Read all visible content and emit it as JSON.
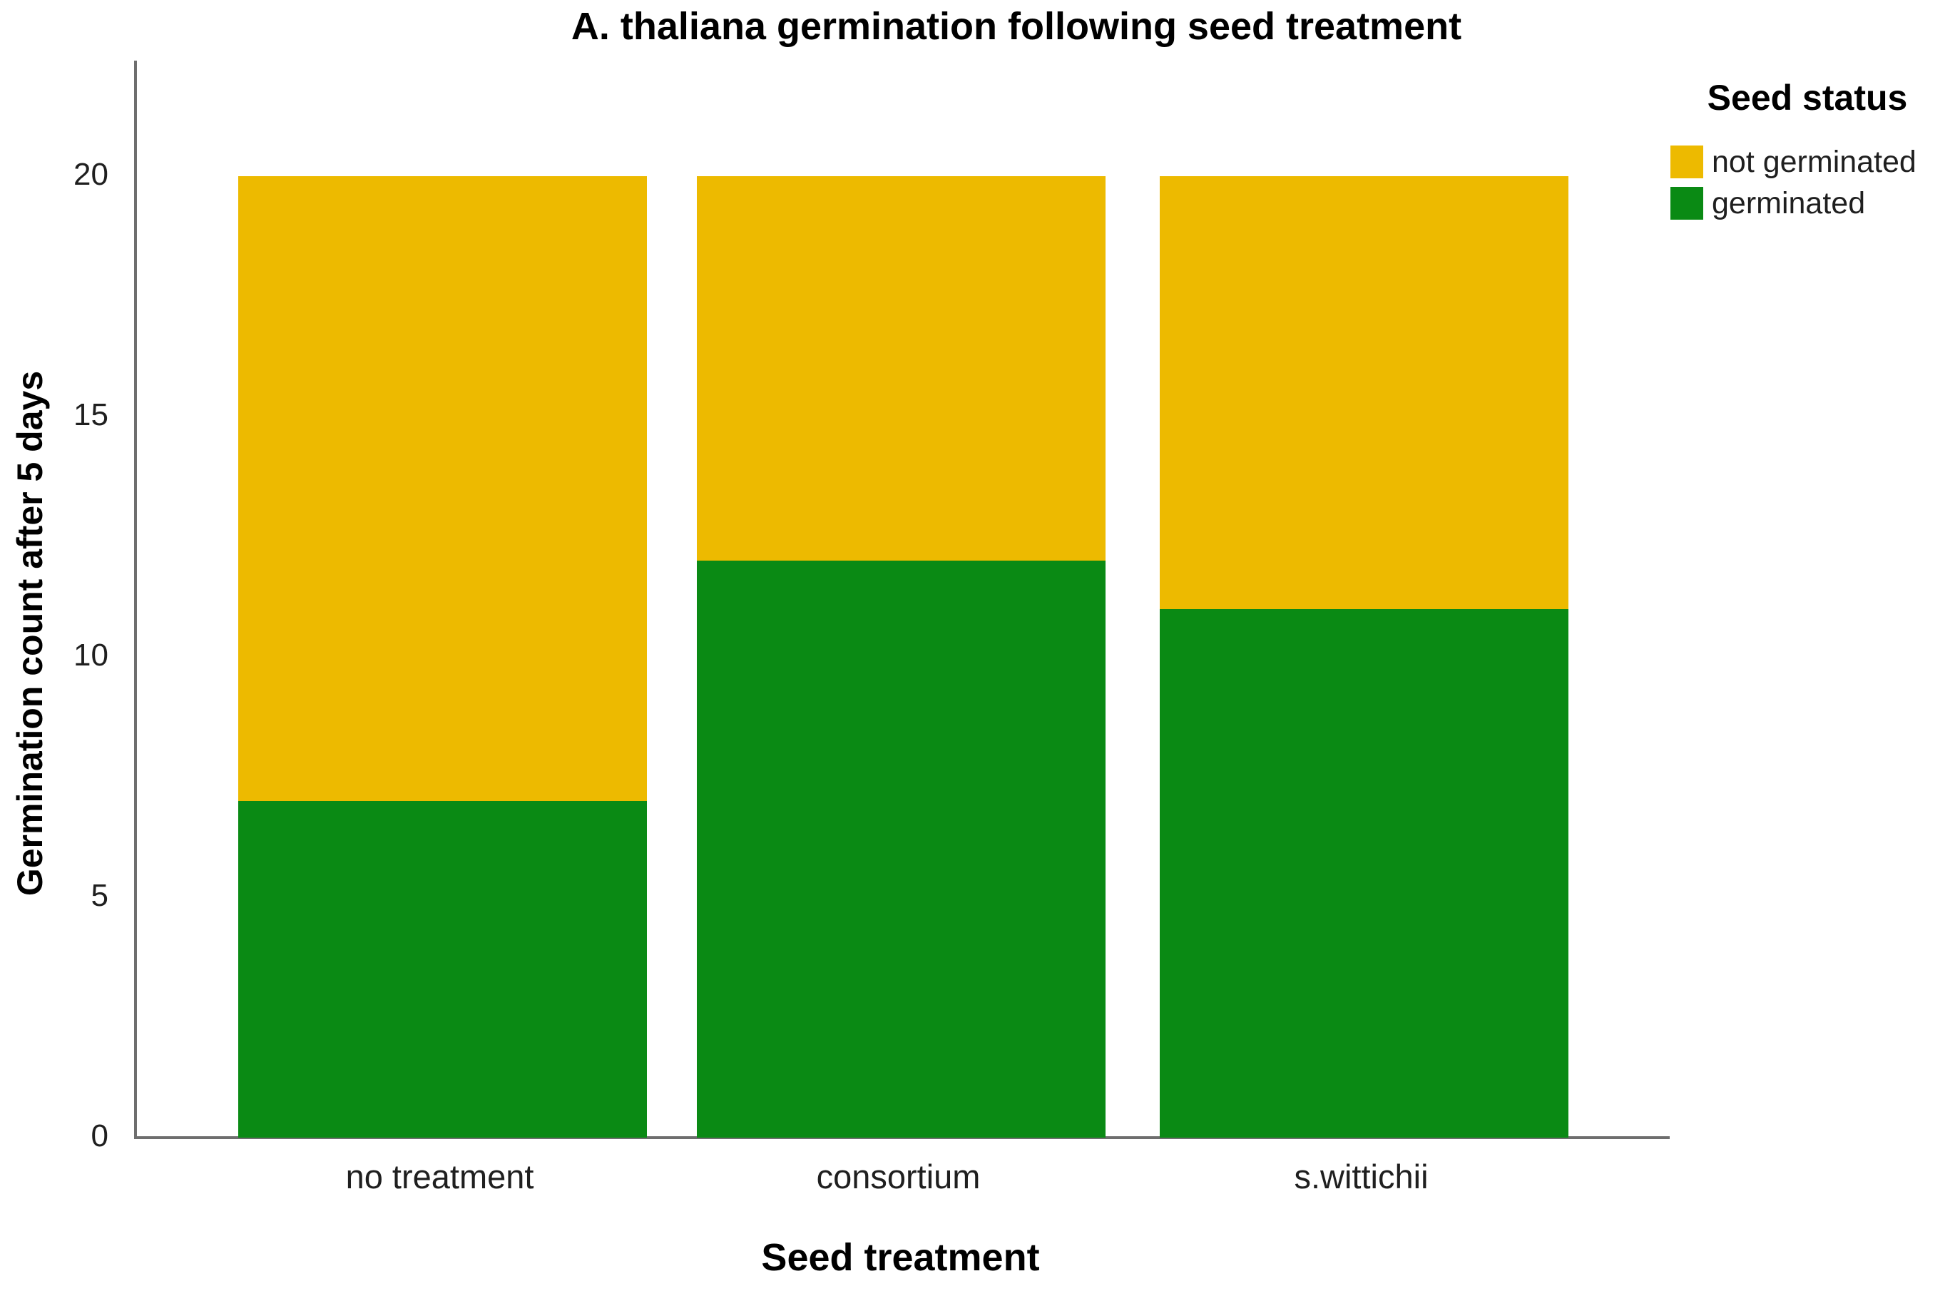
{
  "title": "A. thaliana germination following seed treatment",
  "y_axis_title": "Germination count after 5 days",
  "x_axis_title": "Seed treatment",
  "legend": {
    "title": "Seed status",
    "items": [
      {
        "label": "not germinated",
        "color": "#edba00"
      },
      {
        "label": "germinated",
        "color": "#0a8a14"
      }
    ]
  },
  "colors": {
    "not_germinated": "#edba00",
    "germinated": "#0a8a14",
    "axis_line": "#6e6e6e",
    "text": "#000000"
  },
  "chart_data": {
    "type": "bar",
    "stacked": true,
    "title": "A. thaliana germination following seed treatment",
    "xlabel": "Seed treatment",
    "ylabel": "Germination count after 5 days",
    "categories": [
      "no treatment",
      "consortium",
      "s.wittichii"
    ],
    "series": [
      {
        "name": "germinated",
        "color": "#0a8a14",
        "values": [
          7,
          12,
          11
        ]
      },
      {
        "name": "not germinated",
        "color": "#edba00",
        "values": [
          13,
          8,
          9
        ]
      }
    ],
    "totals": [
      20,
      20,
      20
    ],
    "ylim": [
      0,
      20
    ],
    "yticks": [
      0,
      5,
      10,
      15,
      20
    ],
    "grid": false,
    "legend_title": "Seed status",
    "legend_position": "top-right",
    "legend_order": [
      "not germinated",
      "germinated"
    ]
  }
}
